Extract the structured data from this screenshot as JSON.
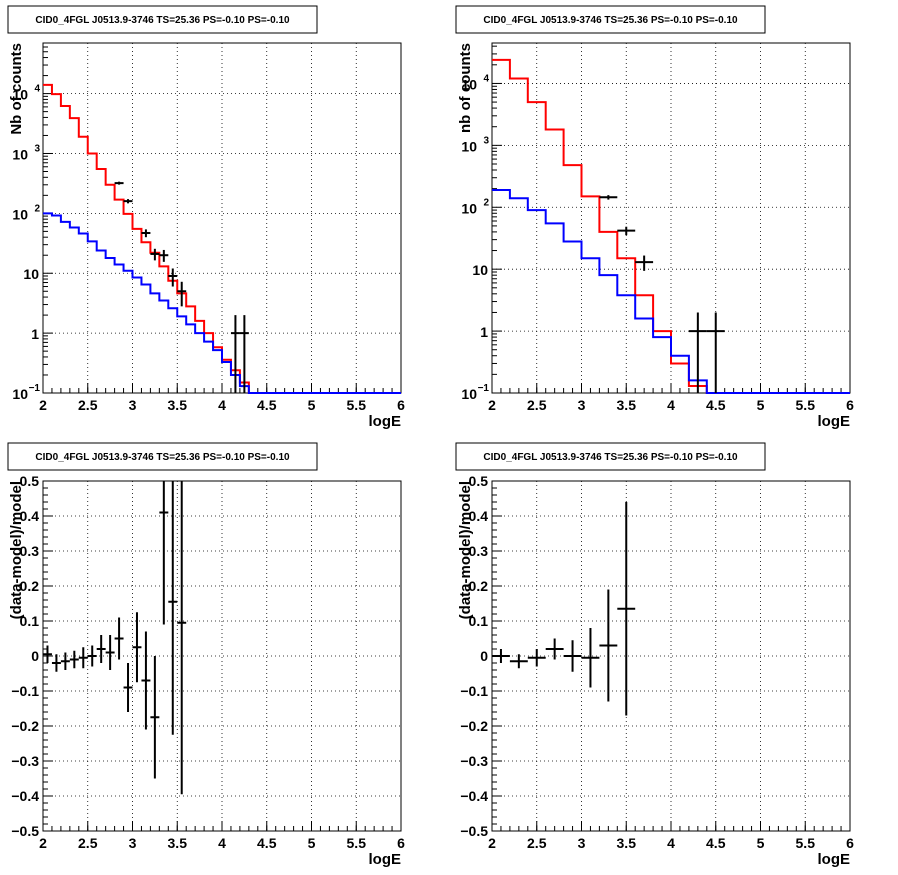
{
  "colors": {
    "model_total": "#ff0000",
    "model_bkg": "#0000ff",
    "data": "#000000",
    "grid": "#000000"
  },
  "chart_data": [
    {
      "type": "line",
      "title": "CID0_4FGL J0513.9-3746 TS=25.36 PS=-0.10 PS=-0.10",
      "xlabel": "logE",
      "ylabel": "Nb of counts",
      "yscale": "log",
      "xlim": [
        2,
        6
      ],
      "ylim": [
        0.1,
        70000
      ],
      "grid": true,
      "xticks": [
        "2",
        "2.5",
        "3",
        "3.5",
        "4",
        "4.5",
        "5",
        "5.5",
        "6"
      ],
      "yticks": [
        {
          "v": 0.1,
          "label": "10",
          "sup": "−1"
        },
        {
          "v": 1,
          "label": "1",
          "sup": ""
        },
        {
          "v": 10,
          "label": "10",
          "sup": ""
        },
        {
          "v": 100,
          "label": "10",
          "sup": "2"
        },
        {
          "v": 1000,
          "label": "10",
          "sup": "3"
        },
        {
          "v": 10000,
          "label": "10",
          "sup": "4"
        }
      ],
      "bin_edges": [
        2.0,
        2.1,
        2.2,
        2.3,
        2.4,
        2.5,
        2.6,
        2.7,
        2.8,
        2.9,
        3.0,
        3.1,
        3.2,
        3.3,
        3.4,
        3.5,
        3.6,
        3.7,
        3.8,
        3.9,
        4.0,
        4.1,
        4.2,
        4.3,
        4.4,
        4.5,
        4.6,
        4.7,
        4.8,
        4.9,
        5.0,
        5.1,
        5.2,
        5.3,
        5.4,
        5.5,
        5.6,
        5.7,
        5.8,
        5.9,
        6.0
      ],
      "series": [
        {
          "color": "#ff0000",
          "style": "step",
          "values": [
            14000,
            9800,
            6200,
            3900,
            1900,
            1000,
            550,
            300,
            170,
            98,
            55,
            33,
            22,
            13,
            7.5,
            4.6,
            2.8,
            1.6,
            1.0,
            0.58,
            0.36,
            0.24,
            0.15,
            0.1,
            0.1,
            0.1,
            0.1,
            0.1,
            0.1,
            0.1,
            0.1,
            0.1,
            0.1,
            0.1,
            0.1,
            0.1,
            0.1,
            0.1,
            0.1,
            0.1
          ]
        },
        {
          "color": "#0000ff",
          "style": "step",
          "values": [
            100,
            92,
            72,
            58,
            46,
            34,
            24,
            18,
            14,
            11,
            8.5,
            6.5,
            4.6,
            3.5,
            2.6,
            1.9,
            1.4,
            1.0,
            0.72,
            0.52,
            0.33,
            0.2,
            0.13,
            0.1,
            0.1,
            0.1,
            0.1,
            0.1,
            0.1,
            0.1,
            0.1,
            0.1,
            0.1,
            0.1,
            0.1,
            0.1,
            0.1,
            0.1,
            0.1,
            0.1
          ]
        },
        {
          "color": "#000000",
          "style": "points",
          "points": [
            {
              "x": 2.85,
              "y": 320,
              "yerr": 18
            },
            {
              "x": 2.95,
              "y": 160,
              "yerr": 13
            },
            {
              "x": 3.15,
              "y": 47,
              "yerr": 7
            },
            {
              "x": 3.25,
              "y": 21,
              "yerr": 4.6
            },
            {
              "x": 3.35,
              "y": 20,
              "yerr": 4.5
            },
            {
              "x": 3.45,
              "y": 9,
              "yerr": 3
            },
            {
              "x": 3.55,
              "y": 5,
              "yerr": 2.2
            },
            {
              "x": 4.15,
              "y": 1,
              "yerr": 1
            },
            {
              "x": 4.25,
              "y": 1,
              "yerr": 1
            }
          ]
        }
      ]
    },
    {
      "type": "line",
      "title": "CID0_4FGL J0513.9-3746 TS=25.36 PS=-0.10 PS=-0.10",
      "xlabel": "logE",
      "ylabel": "nb of counts",
      "yscale": "log",
      "xlim": [
        2,
        6
      ],
      "ylim": [
        0.1,
        45000
      ],
      "grid": true,
      "xticks": [
        "2",
        "2.5",
        "3",
        "3.5",
        "4",
        "4.5",
        "5",
        "5.5",
        "6"
      ],
      "yticks": [
        {
          "v": 0.1,
          "label": "10",
          "sup": "−1"
        },
        {
          "v": 1,
          "label": "1",
          "sup": ""
        },
        {
          "v": 10,
          "label": "10",
          "sup": ""
        },
        {
          "v": 100,
          "label": "10",
          "sup": "2"
        },
        {
          "v": 1000,
          "label": "10",
          "sup": "3"
        },
        {
          "v": 10000,
          "label": "10",
          "sup": "4"
        }
      ],
      "bin_edges": [
        2.0,
        2.2,
        2.4,
        2.6,
        2.8,
        3.0,
        3.2,
        3.4,
        3.6,
        3.8,
        4.0,
        4.2,
        4.4,
        4.6,
        4.8,
        5.0,
        5.2,
        5.4,
        5.6,
        5.8,
        6.0
      ],
      "series": [
        {
          "color": "#ff0000",
          "style": "step",
          "values": [
            24000,
            12000,
            5000,
            1800,
            480,
            150,
            40,
            15,
            3.8,
            1.0,
            0.3,
            0.13,
            0.1,
            0.1,
            0.1,
            0.1,
            0.1,
            0.1,
            0.1,
            0.1
          ]
        },
        {
          "color": "#0000ff",
          "style": "step",
          "values": [
            190,
            140,
            90,
            55,
            28,
            15,
            8.0,
            3.8,
            1.6,
            0.8,
            0.4,
            0.16,
            0.1,
            0.1,
            0.1,
            0.1,
            0.1,
            0.1,
            0.1,
            0.1
          ]
        },
        {
          "color": "#000000",
          "style": "points",
          "points": [
            {
              "x": 3.3,
              "y": 145,
              "yerr": 12
            },
            {
              "x": 3.5,
              "y": 42,
              "yerr": 6.5
            },
            {
              "x": 3.7,
              "y": 13,
              "yerr": 3.6
            },
            {
              "x": 4.3,
              "y": 1,
              "yerr": 1
            },
            {
              "x": 4.5,
              "y": 1,
              "yerr": 1
            }
          ]
        }
      ]
    },
    {
      "type": "scatter",
      "title": "CID0_4FGL J0513.9-3746 TS=25.36 PS=-0.10 PS=-0.10",
      "xlabel": "logE",
      "ylabel": "(data-model)/model",
      "xlim": [
        2,
        6
      ],
      "ylim": [
        -0.5,
        0.5
      ],
      "grid": true,
      "xticks": [
        "2",
        "2.5",
        "3",
        "3.5",
        "4",
        "4.5",
        "5",
        "5.5",
        "6"
      ],
      "yticks_values": [
        -0.5,
        -0.4,
        -0.3,
        -0.2,
        -0.1,
        0,
        0.1,
        0.2,
        0.3,
        0.4,
        0.5
      ],
      "yticks_labels": [
        "−0.5",
        "−0.4",
        "−0.3",
        "−0.2",
        "−0.1",
        "0",
        "0.1",
        "0.2",
        "0.3",
        "0.4",
        "0.5"
      ],
      "xerr": 0.05,
      "series": [
        {
          "color": "#000000",
          "points": [
            {
              "x": 2.05,
              "y": 0.005,
              "yerr": 0.025
            },
            {
              "x": 2.15,
              "y": -0.02,
              "yerr": 0.025
            },
            {
              "x": 2.25,
              "y": -0.015,
              "yerr": 0.025
            },
            {
              "x": 2.35,
              "y": -0.01,
              "yerr": 0.025
            },
            {
              "x": 2.45,
              "y": -0.005,
              "yerr": 0.03
            },
            {
              "x": 2.55,
              "y": 0.0,
              "yerr": 0.03
            },
            {
              "x": 2.65,
              "y": 0.02,
              "yerr": 0.04
            },
            {
              "x": 2.75,
              "y": 0.01,
              "yerr": 0.05
            },
            {
              "x": 2.85,
              "y": 0.05,
              "yerr": 0.06
            },
            {
              "x": 2.95,
              "y": -0.09,
              "yerr": 0.07
            },
            {
              "x": 3.05,
              "y": 0.025,
              "yerr": 0.1
            },
            {
              "x": 3.15,
              "y": -0.07,
              "yerr": 0.14
            },
            {
              "x": 3.25,
              "y": -0.175,
              "yerr": 0.175
            },
            {
              "x": 3.35,
              "y": 0.41,
              "yerr": 0.32
            },
            {
              "x": 3.45,
              "y": 0.155,
              "yerr": 0.38
            },
            {
              "x": 3.55,
              "y": 0.095,
              "yerr": 0.49
            }
          ]
        }
      ]
    },
    {
      "type": "scatter",
      "title": "CID0_4FGL J0513.9-3746 TS=25.36 PS=-0.10 PS=-0.10",
      "xlabel": "logE",
      "ylabel": "(data-model)/model",
      "xlim": [
        2,
        6
      ],
      "ylim": [
        -0.5,
        0.5
      ],
      "grid": true,
      "xticks": [
        "2",
        "2.5",
        "3",
        "3.5",
        "4",
        "4.5",
        "5",
        "5.5",
        "6"
      ],
      "yticks_values": [
        -0.5,
        -0.4,
        -0.3,
        -0.2,
        -0.1,
        0,
        0.1,
        0.2,
        0.3,
        0.4,
        0.5
      ],
      "yticks_labels": [
        "−0.5",
        "−0.4",
        "−0.3",
        "−0.2",
        "−0.1",
        "0",
        "0.1",
        "0.2",
        "0.3",
        "0.4",
        "0.5"
      ],
      "xerr": 0.1,
      "series": [
        {
          "color": "#000000",
          "points": [
            {
              "x": 2.1,
              "y": 0.0,
              "yerr": 0.02
            },
            {
              "x": 2.3,
              "y": -0.015,
              "yerr": 0.02
            },
            {
              "x": 2.5,
              "y": -0.005,
              "yerr": 0.025
            },
            {
              "x": 2.7,
              "y": 0.02,
              "yerr": 0.03
            },
            {
              "x": 2.9,
              "y": 0.0,
              "yerr": 0.045
            },
            {
              "x": 3.1,
              "y": -0.005,
              "yerr": 0.085
            },
            {
              "x": 3.3,
              "y": 0.03,
              "yerr": 0.16
            },
            {
              "x": 3.5,
              "y": 0.135,
              "yerr": 0.305
            }
          ]
        }
      ]
    }
  ]
}
